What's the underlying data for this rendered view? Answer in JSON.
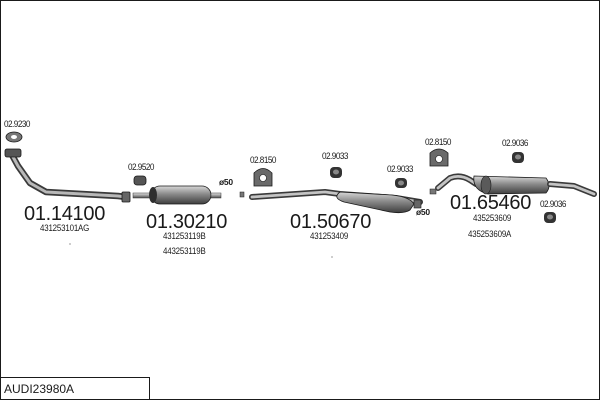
{
  "title": "AUDI23980A",
  "parts": [
    {
      "number": "01.14100",
      "oe": [
        "431253101AG"
      ]
    },
    {
      "number": "01.30210",
      "oe": [
        "431253119B",
        "443253119B"
      ]
    },
    {
      "number": "01.50670",
      "oe": [
        "431253409"
      ]
    },
    {
      "number": "01.65460",
      "oe": [
        "435253609",
        "435253609A"
      ]
    }
  ],
  "accessories": [
    "02.9230",
    "02.9520",
    "02.8150",
    "02.9033",
    "02.9033",
    "02.8150",
    "02.9036",
    "02.9036"
  ],
  "diameters": [
    "ø50",
    "ø50"
  ],
  "colors": {
    "line": "#1a1a1a",
    "part_fill": "#9a9a9a",
    "part_dark": "#4a4a4a",
    "background": "#ffffff"
  }
}
